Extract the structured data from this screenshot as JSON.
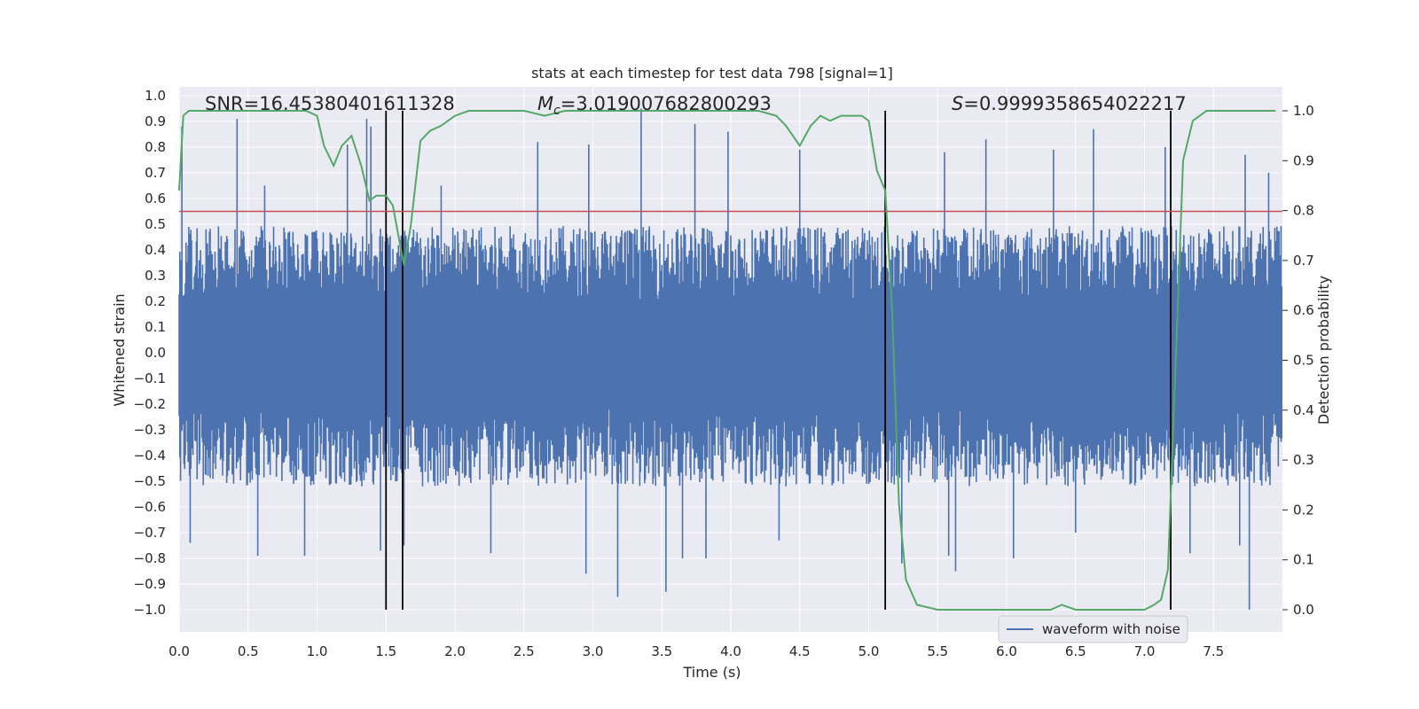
{
  "chart_data": {
    "type": "line",
    "title": "stats at each timestep for test data 798 [signal=1]",
    "xlabel": "Time (s)",
    "ylabel_left": "Whitened strain",
    "ylabel_right": "Detection probability",
    "xlim": [
      0.0,
      8.0
    ],
    "ylim_left": [
      -1.1,
      1.05
    ],
    "ylim_right": [
      0.0,
      1.0
    ],
    "x_ticks": [
      "0.0",
      "0.5",
      "1.0",
      "1.5",
      "2.0",
      "2.5",
      "3.0",
      "3.5",
      "4.0",
      "4.5",
      "5.0",
      "5.5",
      "6.0",
      "6.5",
      "7.0",
      "7.5"
    ],
    "y_left_ticks": [
      "1.0",
      "0.9",
      "0.8",
      "0.7",
      "0.6",
      "0.5",
      "0.4",
      "0.3",
      "0.2",
      "0.1",
      "0.0",
      "-0.1",
      "-0.2",
      "-0.3",
      "-0.4",
      "-0.5",
      "-0.6",
      "-0.7",
      "-0.8",
      "-0.9",
      "-1.0"
    ],
    "y_right_ticks": [
      "1.0",
      "0.9",
      "0.8",
      "0.7",
      "0.6",
      "0.5",
      "0.4",
      "0.3",
      "0.2",
      "0.1",
      "0.0"
    ],
    "annotations": {
      "snr": "SNR=16.45380401611328",
      "mc_symbol": "M",
      "mc_sub": "c",
      "mc_value": "=3.019007682800293",
      "s_symbol": "S",
      "s_value": "=0.9999358654022217"
    },
    "threshold": 0.55,
    "event_lines_x": [
      1.5,
      1.62,
      5.12,
      7.19
    ],
    "legend": [
      "waveform with noise"
    ],
    "legend_position": "lower-right",
    "series": [
      {
        "name": "waveform with noise",
        "kind": "noise",
        "duration": 8.0,
        "envelope_upper": 0.38,
        "envelope_lower": -0.4,
        "peaks": [
          [
            0.02,
            0.88
          ],
          [
            0.42,
            0.91
          ],
          [
            1.36,
            0.91
          ],
          [
            1.39,
            0.88
          ],
          [
            1.22,
            0.81
          ],
          [
            3.35,
            0.95
          ],
          [
            3.74,
            0.89
          ],
          [
            3.98,
            0.86
          ],
          [
            2.97,
            0.81
          ],
          [
            2.6,
            0.82
          ],
          [
            4.5,
            0.79
          ],
          [
            5.55,
            0.78
          ],
          [
            5.85,
            0.83
          ],
          [
            6.34,
            0.79
          ],
          [
            6.63,
            0.87
          ],
          [
            7.15,
            0.8
          ],
          [
            7.73,
            0.77
          ],
          [
            7.9,
            0.7
          ],
          [
            0.62,
            0.65
          ],
          [
            1.9,
            0.65
          ],
          [
            0.57,
            -0.79
          ],
          [
            0.91,
            -0.79
          ],
          [
            1.46,
            -0.77
          ],
          [
            1.63,
            -0.75
          ],
          [
            2.26,
            -0.78
          ],
          [
            2.95,
            -0.86
          ],
          [
            3.18,
            -0.95
          ],
          [
            3.53,
            -0.93
          ],
          [
            3.65,
            -0.8
          ],
          [
            3.82,
            -0.8
          ],
          [
            4.35,
            -0.73
          ],
          [
            5.24,
            -0.82
          ],
          [
            5.58,
            -0.79
          ],
          [
            5.63,
            -0.85
          ],
          [
            6.05,
            -0.8
          ],
          [
            6.5,
            -0.7
          ],
          [
            7.33,
            -0.78
          ],
          [
            7.69,
            -0.75
          ],
          [
            7.76,
            -1.0
          ],
          [
            0.08,
            -0.74
          ]
        ]
      },
      {
        "name": "detection probability",
        "axis": "right",
        "color": "#55a868",
        "x": [
          0.0,
          0.03,
          0.07,
          0.12,
          0.2,
          0.35,
          0.5,
          0.65,
          0.8,
          0.92,
          1.0,
          1.05,
          1.12,
          1.18,
          1.25,
          1.32,
          1.38,
          1.43,
          1.5,
          1.55,
          1.59,
          1.63,
          1.68,
          1.75,
          1.82,
          1.9,
          2.0,
          2.1,
          2.3,
          2.5,
          2.65,
          2.8,
          3.0,
          3.2,
          3.4,
          3.6,
          3.8,
          4.0,
          4.2,
          4.33,
          4.4,
          4.5,
          4.58,
          4.65,
          4.72,
          4.8,
          4.88,
          4.95,
          5.0,
          5.06,
          5.12,
          5.17,
          5.22,
          5.27,
          5.35,
          5.5,
          5.7,
          6.0,
          6.2,
          6.32,
          6.4,
          6.5,
          6.6,
          6.75,
          6.9,
          7.0,
          7.07,
          7.12,
          7.17,
          7.22,
          7.28,
          7.35,
          7.45,
          7.6,
          7.8,
          7.95
        ],
        "values": [
          0.84,
          0.99,
          1.0,
          1.0,
          1.0,
          1.0,
          1.0,
          1.0,
          1.0,
          1.0,
          0.99,
          0.93,
          0.89,
          0.93,
          0.95,
          0.89,
          0.82,
          0.83,
          0.83,
          0.81,
          0.75,
          0.69,
          0.77,
          0.94,
          0.96,
          0.97,
          0.99,
          1.0,
          1.0,
          1.0,
          0.99,
          1.0,
          1.0,
          1.0,
          1.0,
          1.0,
          1.0,
          1.0,
          1.0,
          0.99,
          0.97,
          0.93,
          0.97,
          0.99,
          0.98,
          0.99,
          0.99,
          0.99,
          0.98,
          0.88,
          0.84,
          0.6,
          0.21,
          0.06,
          0.01,
          0.0,
          0.0,
          0.0,
          0.0,
          0.0,
          0.01,
          0.0,
          0.0,
          0.0,
          0.0,
          0.0,
          0.01,
          0.02,
          0.08,
          0.45,
          0.9,
          0.98,
          1.0,
          1.0,
          1.0,
          1.0
        ]
      }
    ]
  },
  "colors": {
    "background": "#eaeaf2",
    "grid": "#ffffff",
    "noise": "#4c72b0",
    "probability": "#55a868",
    "threshold": "#c44e52",
    "event_line": "#000000"
  }
}
